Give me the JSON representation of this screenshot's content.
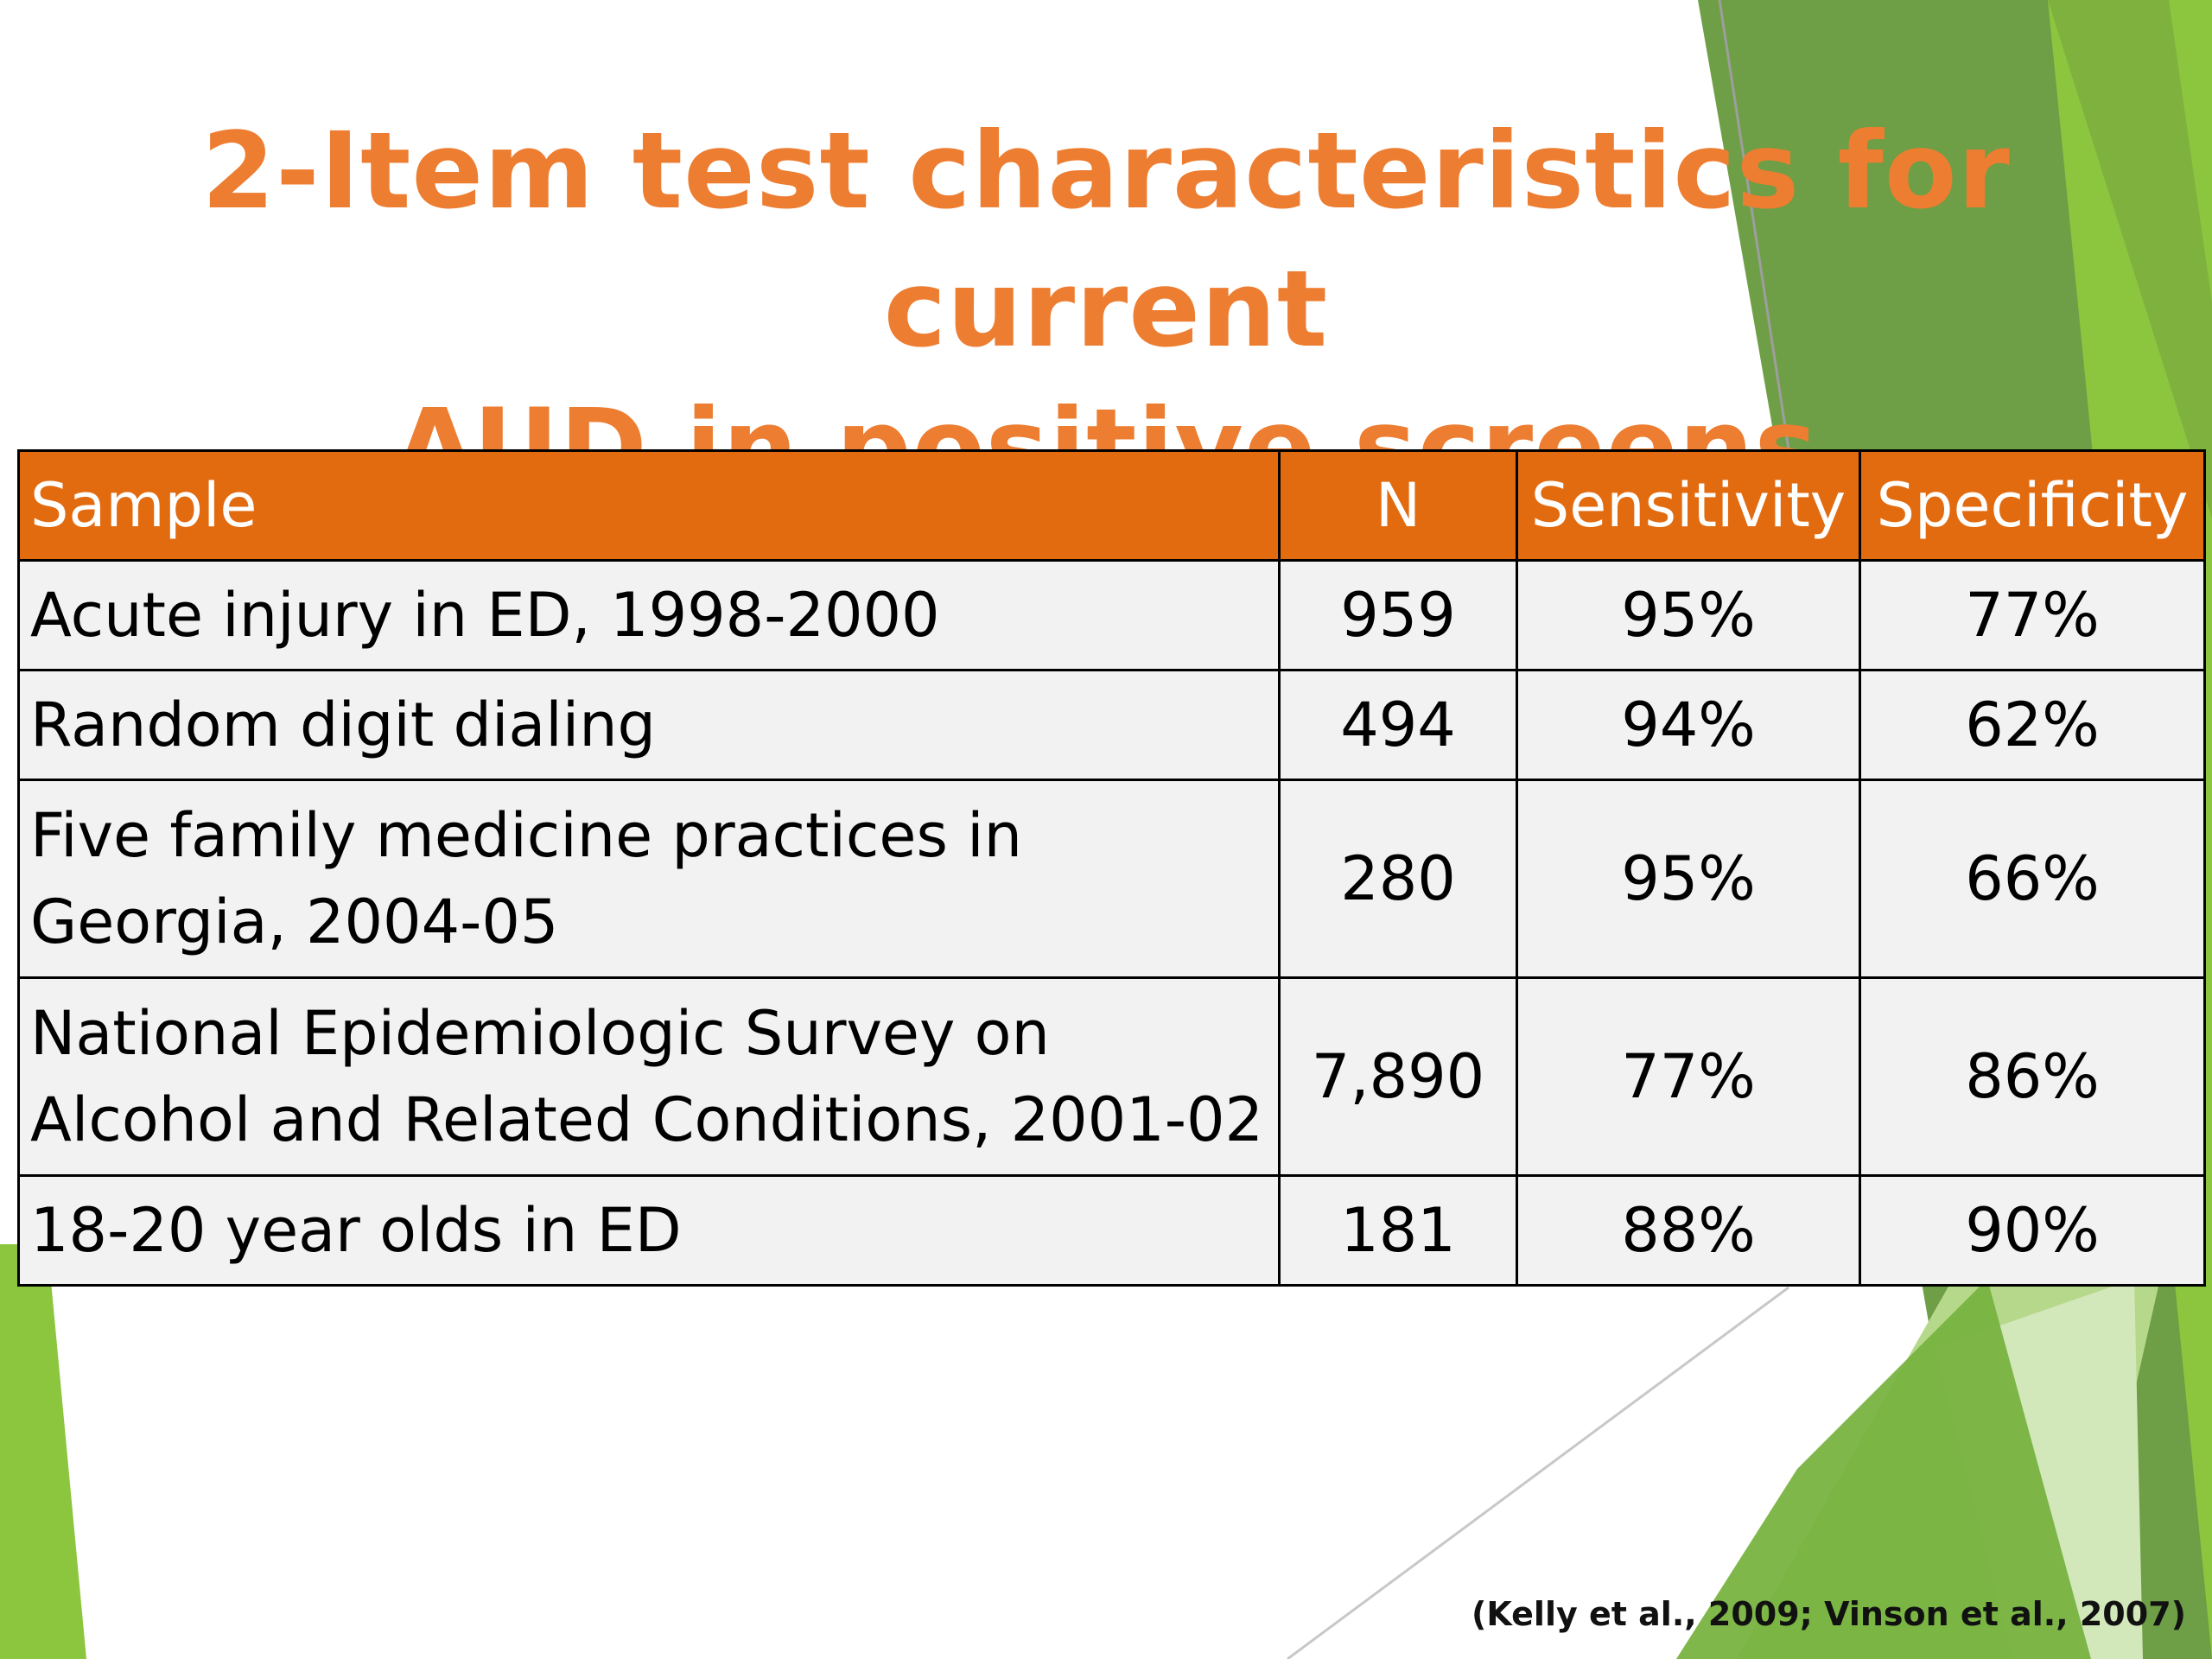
{
  "slide": {
    "title_lines": [
      "2-Item test characteristics for current",
      "AUD in positive screens"
    ],
    "table": {
      "headers": [
        "Sample",
        "N",
        "Sensitivity",
        "Specificity"
      ],
      "rows": [
        {
          "sample": [
            "Acute injury in ED, 1998-2000"
          ],
          "n": "959",
          "sensitivity": "95%",
          "specificity": "77%"
        },
        {
          "sample": [
            "Random digit dialing"
          ],
          "n": "494",
          "sensitivity": "94%",
          "specificity": "62%"
        },
        {
          "sample": [
            "Five family medicine practices in",
            "Georgia, 2004-05"
          ],
          "n": "280",
          "sensitivity": "95%",
          "specificity": "66%"
        },
        {
          "sample": [
            "National Epidemiologic Survey on",
            "Alcohol and Related Conditions, 2001-02"
          ],
          "n": "7,890",
          "sensitivity": "77%",
          "specificity": "86%"
        },
        {
          "sample": [
            "18-20 year olds in ED"
          ],
          "n": "181",
          "sensitivity": "88%",
          "specificity": "90%"
        }
      ]
    },
    "citation": "(Kelly et al., 2009; Vinson et al., 2007)"
  },
  "colors": {
    "title": "#ED7D31",
    "header_fill": "#E26B10",
    "row_fill": "#F2F2F2",
    "accent_green": "#8CC63E",
    "accent_dark_green": "#6E9E46"
  }
}
